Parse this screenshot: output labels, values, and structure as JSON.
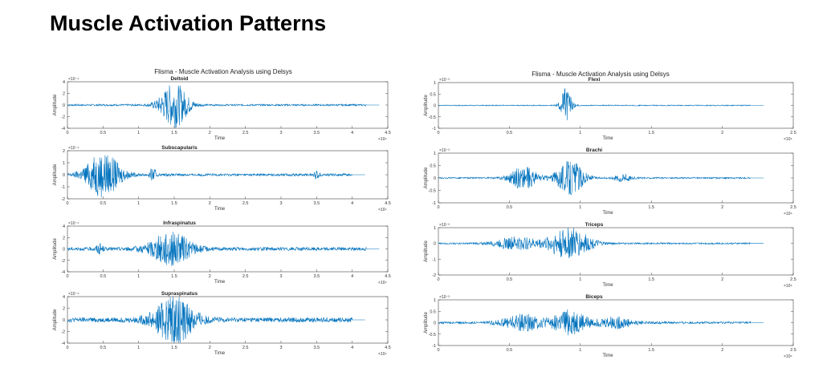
{
  "slide": {
    "title": "Muscle Activation Patterns"
  },
  "chart_data": [
    {
      "type": "line",
      "title": "Flisma - Muscle Activation Analysis using Delsys",
      "xlabel": "Time",
      "ylabel": "Amplitude",
      "x_exponent": "×10⁴",
      "y_exponent": "×10⁻⁴",
      "xlim": [
        0,
        4.5
      ],
      "xticks": [
        "0",
        "0.5",
        "1",
        "1.5",
        "2",
        "2.5",
        "3",
        "3.5",
        "4",
        "4.5"
      ],
      "color": "#0072BD",
      "panels": [
        {
          "name": "Deltoid",
          "ylim": [
            -4,
            4
          ],
          "yticks": [
            "4",
            "2",
            "0",
            "-2",
            "-4"
          ],
          "x_end": 4.2,
          "noise": 0.15,
          "bursts": [
            {
              "x": 1.5,
              "w": 0.2,
              "amp": 3.8
            }
          ]
        },
        {
          "name": "Subscapularis",
          "ylim": [
            -2,
            2
          ],
          "yticks": [
            "2",
            "1",
            "0",
            "-1",
            "-2"
          ],
          "x_end": 4.0,
          "noise": 0.1,
          "bursts": [
            {
              "x": 0.5,
              "w": 0.25,
              "amp": 1.8
            },
            {
              "x": 1.2,
              "w": 0.05,
              "amp": 0.5
            },
            {
              "x": 3.5,
              "w": 0.04,
              "amp": 0.3
            }
          ]
        },
        {
          "name": "Infraspinatus",
          "ylim": [
            -4,
            4
          ],
          "yticks": [
            "4",
            "2",
            "0",
            "-2",
            "-4"
          ],
          "x_end": 4.2,
          "noise": 0.3,
          "bursts": [
            {
              "x": 1.45,
              "w": 0.3,
              "amp": 2.8
            },
            {
              "x": 0.45,
              "w": 0.05,
              "amp": 0.8
            }
          ]
        },
        {
          "name": "Supraspinatus",
          "ylim": [
            -4,
            4
          ],
          "yticks": [
            "4",
            "2",
            "0",
            "-2",
            "-4"
          ],
          "x_end": 4.0,
          "noise": 0.4,
          "bursts": [
            {
              "x": 1.5,
              "w": 0.3,
              "amp": 3.8
            }
          ]
        }
      ]
    },
    {
      "type": "line",
      "title": "Flisma - Muscle Activation Analysis using Delsys",
      "xlabel": "Time",
      "ylabel": "Amplitude",
      "x_exponent": "×10⁴",
      "y_exponent": "×10⁻³",
      "xlim": [
        0,
        2.5
      ],
      "xticks": [
        "0",
        "0.5",
        "1",
        "1.5",
        "2",
        "2.5"
      ],
      "color": "#0072BD",
      "panels": [
        {
          "name": "Flexi",
          "ylim": [
            -1,
            1
          ],
          "yticks": [
            "1",
            "0.5",
            "0",
            "-0.5",
            "-1"
          ],
          "x_end": 2.2,
          "noise": 0.02,
          "bursts": [
            {
              "x": 0.9,
              "w": 0.04,
              "amp": 0.75
            }
          ]
        },
        {
          "name": "Brachi",
          "ylim": [
            -1,
            1
          ],
          "yticks": [
            "1",
            "0.5",
            "0",
            "-0.5",
            "-1"
          ],
          "x_end": 2.2,
          "noise": 0.03,
          "bursts": [
            {
              "x": 0.6,
              "w": 0.1,
              "amp": 0.45
            },
            {
              "x": 0.93,
              "w": 0.1,
              "amp": 0.7
            },
            {
              "x": 1.3,
              "w": 0.06,
              "amp": 0.15
            }
          ]
        },
        {
          "name": "Triceps",
          "ylim": [
            -2,
            1
          ],
          "yticks": [
            "1",
            "0",
            "-1",
            "-2"
          ],
          "x_end": 2.2,
          "noise": 0.05,
          "bursts": [
            {
              "x": 0.55,
              "w": 0.15,
              "amp": 0.4
            },
            {
              "x": 0.92,
              "w": 0.15,
              "amp": 1.0
            }
          ]
        },
        {
          "name": "Biceps",
          "ylim": [
            -1,
            1
          ],
          "yticks": [
            "1",
            "0.5",
            "0",
            "-0.5",
            "-1"
          ],
          "x_end": 2.2,
          "noise": 0.05,
          "bursts": [
            {
              "x": 0.6,
              "w": 0.15,
              "amp": 0.35
            },
            {
              "x": 0.93,
              "w": 0.12,
              "amp": 0.55
            },
            {
              "x": 1.25,
              "w": 0.12,
              "amp": 0.25
            }
          ]
        }
      ]
    }
  ]
}
